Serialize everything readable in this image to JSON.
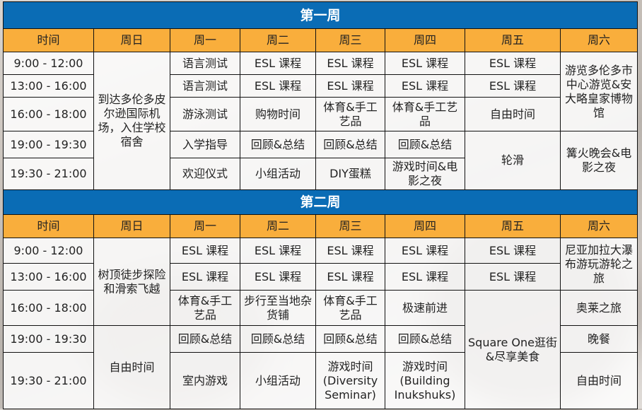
{
  "colors": {
    "week_bar": "#0a6cb5",
    "header": "#f9ae3c"
  },
  "headers": [
    "时间",
    "周日",
    "周一",
    "周二",
    "周三",
    "周四",
    "周五",
    "周六"
  ],
  "weeks": [
    {
      "title": "第一周",
      "rows": [
        [
          {
            "t": "9:00 - 12:00"
          },
          {
            "t": "到达多伦多皮尔逊国际机场，入住学校宿舍",
            "rs": 5,
            "left": true
          },
          {
            "t": "语言测试"
          },
          {
            "t": "ESL 课程"
          },
          {
            "t": "ESL 课程"
          },
          {
            "t": "ESL 课程"
          },
          {
            "t": "ESL 课程"
          },
          {
            "t": "游览多伦多市中心游览&安大略皇家博物馆",
            "rs": 3,
            "left": true
          }
        ],
        [
          {
            "t": "13:00 - 16:00"
          },
          {
            "t": "语言测试"
          },
          {
            "t": "ESL 课程"
          },
          {
            "t": "ESL 课程"
          },
          {
            "t": "ESL 课程"
          },
          {
            "t": "ESL 课程"
          }
        ],
        [
          {
            "t": "16:00 - 18:00"
          },
          {
            "t": "游泳测试"
          },
          {
            "t": "购物时间"
          },
          {
            "t": "体育&手工艺品"
          },
          {
            "t": "体育&手工艺品"
          },
          {
            "t": "自由时间"
          }
        ],
        [
          {
            "t": "19:00 - 19:30"
          },
          {
            "t": "入学指导"
          },
          {
            "t": "回顾&总结"
          },
          {
            "t": "回顾&总结"
          },
          {
            "t": "回顾&总结"
          },
          {
            "t": "轮滑",
            "rs": 2
          },
          {
            "t": "篝火晚会&电影之夜",
            "rs": 2,
            "left": true
          }
        ],
        [
          {
            "t": "19:30 - 21:00"
          },
          {
            "t": "欢迎仪式"
          },
          {
            "t": "小组活动"
          },
          {
            "t": "DIY蛋糕"
          },
          {
            "t": "游戏时间&电影之夜"
          }
        ]
      ]
    },
    {
      "title": "第二周",
      "rows": [
        [
          {
            "t": "9:00 - 12:00"
          },
          {
            "t": "树顶徒步探险和滑索飞越",
            "rs": 3,
            "left": true
          },
          {
            "t": "ESL 课程"
          },
          {
            "t": "ESL 课程"
          },
          {
            "t": "ESL 课程"
          },
          {
            "t": "ESL 课程"
          },
          {
            "t": "ESL 课程"
          },
          {
            "t": "尼亚加拉大瀑布游玩游轮之旅",
            "rs": 2,
            "left": true
          }
        ],
        [
          {
            "t": "13:00 - 16:00"
          },
          {
            "t": "ESL 课程"
          },
          {
            "t": "ESL 课程"
          },
          {
            "t": "ESL 课程"
          },
          {
            "t": "ESL 课程"
          },
          {
            "t": "ESL 课程"
          }
        ],
        [
          {
            "t": "16:00 - 18:00"
          },
          {
            "t": "体育&手工艺品"
          },
          {
            "t": "步行至当地杂货铺"
          },
          {
            "t": "体育&手工艺品"
          },
          {
            "t": "极速前进"
          },
          {
            "t": "Square One逛街&尽享美食",
            "rs": 3
          },
          {
            "t": "奥莱之旅"
          }
        ],
        [
          {
            "t": "19:00 - 19:30"
          },
          {
            "t": "自由时间",
            "rs": 2
          },
          {
            "t": "回顾&总结"
          },
          {
            "t": "回顾&总结"
          },
          {
            "t": "回顾&总结"
          },
          {
            "t": "回顾&总结"
          },
          {
            "t": "晚餐"
          }
        ],
        [
          {
            "t": "19:30 - 21:00"
          },
          {
            "t": "室内游戏"
          },
          {
            "t": "小组活动"
          },
          {
            "t": "游戏时间 (Diversity Seminar)"
          },
          {
            "t": "游戏时间 (Building Inukshuks)"
          },
          {
            "t": "自由时间"
          }
        ]
      ]
    }
  ]
}
